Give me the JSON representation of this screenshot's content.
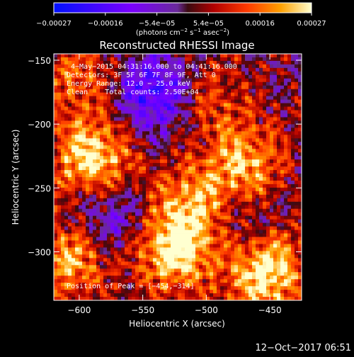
{
  "chart_data": {
    "type": "heatmap",
    "title": "Reconstructed RHESSI Image",
    "xlabel": "Heliocentric X (arcsec)",
    "ylabel": "Heliocentric Y (arcsec)",
    "xlim": [
      -620,
      -425
    ],
    "ylim": [
      -338,
      -145
    ],
    "x_ticks": [
      -600,
      -550,
      -500,
      -450
    ],
    "y_ticks": [
      -150,
      -200,
      -250,
      -300
    ],
    "x_tick_labels": [
      "−600",
      "−550",
      "−500",
      "−450"
    ],
    "y_tick_labels": [
      "−150",
      "−200",
      "−250",
      "−300"
    ],
    "colorbar": {
      "min": -0.00027,
      "max": 0.00027,
      "tick_labels": [
        "−0.00027",
        "−0.00016",
        "−5.4e−05",
        "5.4e−05",
        "0.00016",
        "0.00027"
      ],
      "unit_parts": [
        "(photons cm",
        "−2",
        " s",
        "−1",
        " asec",
        "−2",
        ")"
      ],
      "colormap": "blue-white-red (RHESSI)"
    },
    "annotations": {
      "time_range": "4−May−2015 04:31:16.000 to 04:41:16.000",
      "detectors": "Detectors: 3F 5F 6F 7F 8F 9F, Att 0",
      "energy": "Energy Range: 12.0 − 25.0 keV",
      "clean": "Clean    Total counts: 2.50E+04",
      "peak": "Position of Peak = [−454,−314]"
    },
    "peak": {
      "x": -454,
      "y": -314
    },
    "bright_regions": [
      {
        "x": -590,
        "y": -225,
        "amplitude": 1.0
      },
      {
        "x": -608,
        "y": -305,
        "amplitude": 0.8
      },
      {
        "x": -525,
        "y": -300,
        "amplitude": 1.0
      },
      {
        "x": -512,
        "y": -265,
        "amplitude": 0.75
      },
      {
        "x": -470,
        "y": -230,
        "amplitude": 0.8
      },
      {
        "x": -454,
        "y": -314,
        "amplitude": 1.2
      },
      {
        "x": -500,
        "y": -180,
        "amplitude": 0.45
      },
      {
        "x": -600,
        "y": -165,
        "amplitude": 0.5
      }
    ],
    "dark_regions": [
      {
        "x": -540,
        "y": -175,
        "amplitude": -0.9
      },
      {
        "x": -575,
        "y": -275,
        "amplitude": -0.5
      },
      {
        "x": -470,
        "y": -285,
        "amplitude": -0.4
      }
    ]
  },
  "footer": {
    "timestamp": "12−Oct−2017 06:51"
  }
}
